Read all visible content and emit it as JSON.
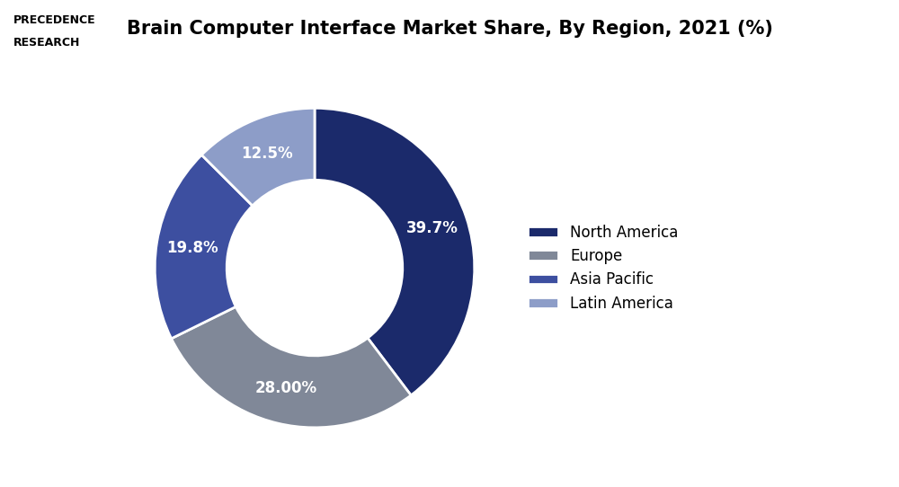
{
  "chart_data": {
    "type": "donut",
    "title": "Brain Computer Interface Market Share, By Region, 2021 (%)",
    "categories": [
      "North America",
      "Europe",
      "Asia Pacific",
      "Latin America"
    ],
    "values": [
      39.7,
      28.0,
      19.8,
      12.5
    ],
    "value_labels": [
      "39.7%",
      "28.00%",
      "19.8%",
      "12.5%"
    ],
    "colors": [
      "#1b2a6b",
      "#808898",
      "#3d4fa0",
      "#8d9dc8"
    ],
    "data_labels": true,
    "legend": "center left",
    "annotations": [
      "PRECEDENCE",
      "RESEARCH"
    ]
  }
}
